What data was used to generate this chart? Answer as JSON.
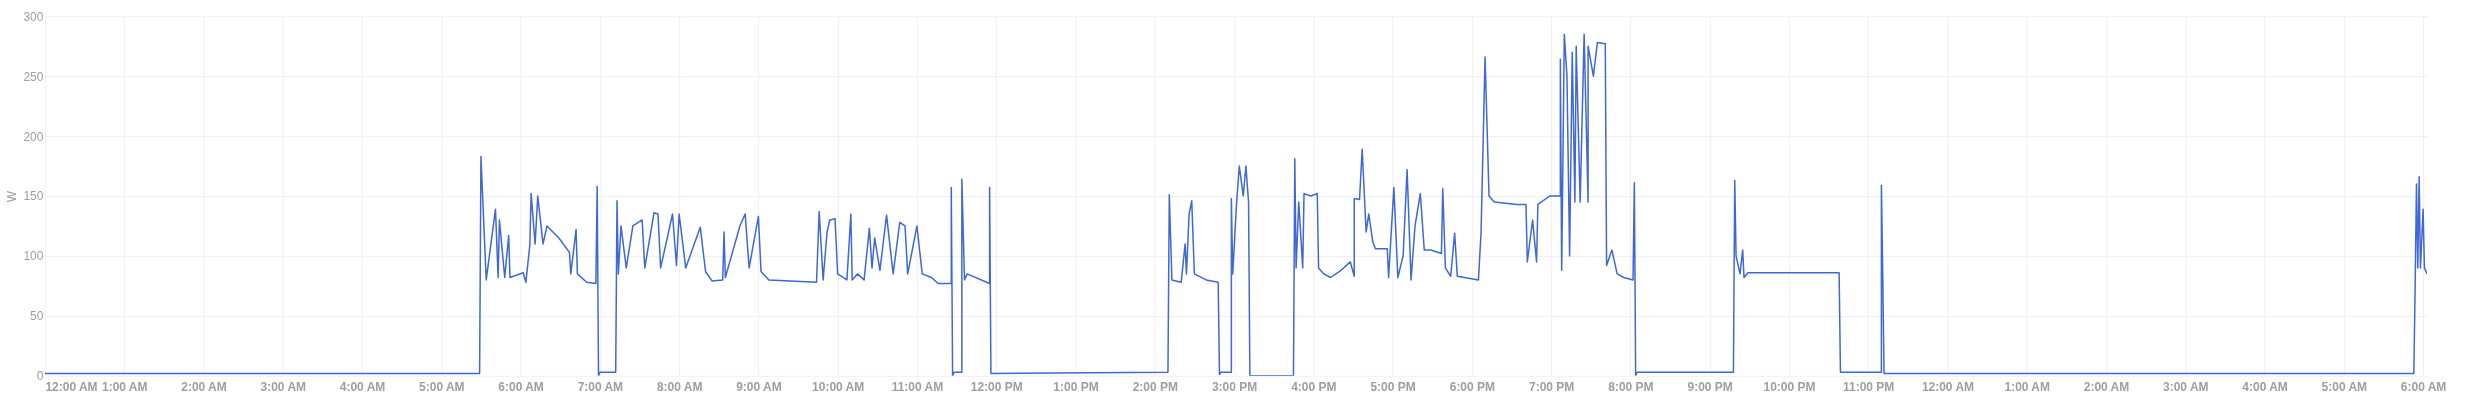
{
  "chart_data": {
    "type": "line",
    "ylabel": "W",
    "x": [
      "2000-01-01T00:00",
      "2000-01-01T05:29",
      "2000-01-01T05:30",
      "2000-01-01T05:32",
      "2000-01-01T05:34",
      "2000-01-01T05:41",
      "2000-01-01T05:43",
      "2000-01-01T05:44",
      "2000-01-01T05:48",
      "2000-01-01T05:51",
      "2000-01-01T05:52",
      "2000-01-01T06:02",
      "2000-01-01T06:04",
      "2000-01-01T06:07",
      "2000-01-01T06:08",
      "2000-01-01T06:11",
      "2000-01-01T06:13",
      "2000-01-01T06:17",
      "2000-01-01T06:20",
      "2000-01-01T06:29",
      "2000-01-01T06:37",
      "2000-01-01T06:38",
      "2000-01-01T06:42",
      "2000-01-01T06:43",
      "2000-01-01T06:50",
      "2000-01-01T06:57",
      "2000-01-01T06:58",
      "2000-01-01T06:59",
      "2000-01-01T07:00",
      "2000-01-01T07:12",
      "2000-01-01T07:13",
      "2000-01-01T07:14",
      "2000-01-01T07:16",
      "2000-01-01T07:20",
      "2000-01-01T07:25",
      "2000-01-01T07:32",
      "2000-01-01T07:34",
      "2000-01-01T07:41",
      "2000-01-01T07:44",
      "2000-01-01T07:46",
      "2000-01-01T07:55",
      "2000-01-01T07:58",
      "2000-01-01T08:00",
      "2000-01-01T08:05",
      "2000-01-01T08:16",
      "2000-01-01T08:20",
      "2000-01-01T08:25",
      "2000-01-01T08:33",
      "2000-01-01T08:34",
      "2000-01-01T08:35",
      "2000-01-01T08:46",
      "2000-01-01T08:50",
      "2000-01-01T08:53",
      "2000-01-01T09:00",
      "2000-01-01T09:02",
      "2000-01-01T09:08",
      "2000-01-01T09:44",
      "2000-01-01T09:46",
      "2000-01-01T09:49",
      "2000-01-01T09:52",
      "2000-01-01T09:54",
      "2000-01-01T09:58",
      "2000-01-01T10:00",
      "2000-01-01T10:07",
      "2000-01-01T10:10",
      "2000-01-01T10:11",
      "2000-01-01T10:15",
      "2000-01-01T10:20",
      "2000-01-01T10:24",
      "2000-01-01T10:26",
      "2000-01-01T10:28",
      "2000-01-01T10:32",
      "2000-01-01T10:37",
      "2000-01-01T10:42",
      "2000-01-01T10:47",
      "2000-01-01T10:51",
      "2000-01-01T10:53",
      "2000-01-01T11:00",
      "2000-01-01T11:04",
      "2000-01-01T11:11",
      "2000-01-01T11:16",
      "2000-01-01T11:26",
      "2000-01-01T11:26",
      "2000-01-01T11:27",
      "2000-01-01T11:28",
      "2000-01-01T11:34",
      "2000-01-01T11:34",
      "2000-01-01T11:36",
      "2000-01-01T11:38",
      "2000-01-01T11:55",
      "2000-01-01T11:55",
      "2000-01-01T11:56",
      "2000-01-01T14:10",
      "2000-01-01T14:11",
      "2000-01-01T14:13",
      "2000-01-01T14:20",
      "2000-01-01T14:23",
      "2000-01-01T14:24",
      "2000-01-01T14:26",
      "2000-01-01T14:28",
      "2000-01-01T14:30",
      "2000-01-01T14:39",
      "2000-01-01T14:48",
      "2000-01-01T14:49",
      "2000-01-01T14:50",
      "2000-01-01T14:58",
      "2000-01-01T14:58",
      "2000-01-01T14:59",
      "2000-01-01T15:02",
      "2000-01-01T15:04",
      "2000-01-01T15:07",
      "2000-01-01T15:09",
      "2000-01-01T15:11",
      "2000-01-01T15:12",
      "2000-01-01T15:45",
      "2000-01-01T15:46",
      "2000-01-01T15:47",
      "2000-01-01T15:49",
      "2000-01-01T15:52",
      "2000-01-01T15:53",
      "2000-01-01T15:58",
      "2000-01-01T16:03",
      "2000-01-01T16:04",
      "2000-01-01T16:08",
      "2000-01-01T16:13",
      "2000-01-01T16:21",
      "2000-01-01T16:28",
      "2000-01-01T16:31",
      "2000-01-01T16:31",
      "2000-01-01T16:35",
      "2000-01-01T16:37",
      "2000-01-01T16:40",
      "2000-01-01T16:42",
      "2000-01-01T16:45",
      "2000-01-01T16:47",
      "2000-01-01T16:56",
      "2000-01-01T16:57",
      "2000-01-01T17:01",
      "2000-01-01T17:04",
      "2000-01-01T17:08",
      "2000-01-01T17:11",
      "2000-01-01T17:14",
      "2000-01-01T17:17",
      "2000-01-01T17:21",
      "2000-01-01T17:24",
      "2000-01-01T17:29",
      "2000-01-01T17:37",
      "2000-01-01T17:38",
      "2000-01-01T17:40",
      "2000-01-01T17:44",
      "2000-01-01T17:47",
      "2000-01-01T17:49",
      "2000-01-01T18:05",
      "2000-01-01T18:07",
      "2000-01-01T18:10",
      "2000-01-01T18:11",
      "2000-01-01T18:13",
      "2000-01-01T18:17",
      "2000-01-01T18:34",
      "2000-01-01T18:41",
      "2000-01-01T18:42",
      "2000-01-01T18:46",
      "2000-01-01T18:49",
      "2000-01-01T18:50",
      "2000-01-01T18:59",
      "2000-01-01T19:07",
      "2000-01-01T19:07",
      "2000-01-01T19:08",
      "2000-01-01T19:10",
      "2000-01-01T19:12",
      "2000-01-01T19:14",
      "2000-01-01T19:16",
      "2000-01-01T19:18",
      "2000-01-01T19:19",
      "2000-01-01T19:22",
      "2000-01-01T19:25",
      "2000-01-01T19:28",
      "2000-01-01T19:28",
      "2000-01-01T19:32",
      "2000-01-01T19:35",
      "2000-01-01T19:41",
      "2000-01-01T19:42",
      "2000-01-01T19:46",
      "2000-01-01T19:50",
      "2000-01-01T19:55",
      "2000-01-01T20:02",
      "2000-01-01T20:03",
      "2000-01-01T20:04",
      "2000-01-01T20:05",
      "2000-01-01T21:18",
      "2000-01-01T21:19",
      "2000-01-01T21:20",
      "2000-01-01T21:23",
      "2000-01-01T21:25",
      "2000-01-01T21:26",
      "2000-01-01T21:29",
      "2000-01-01T22:38",
      "2000-01-01T22:39",
      "2000-01-01T23:10",
      "2000-01-01T23:10",
      "2000-01-01T23:11",
      "2000-01-01T23:12",
      "2000-01-02T00:41",
      "2000-01-02T05:53",
      "2000-01-02T05:54",
      "2000-01-02T05:55",
      "2000-01-02T05:56",
      "2000-01-02T05:57",
      "2000-01-02T05:58",
      "2000-01-02T06:00",
      "2000-01-02T06:01",
      "2000-01-02T06:03"
    ],
    "values": [
      2,
      2,
      183,
      131,
      80,
      139,
      82,
      130,
      82,
      117,
      82,
      86,
      78,
      109,
      152,
      110,
      150,
      110,
      125,
      115,
      103,
      85,
      122,
      85,
      78,
      77,
      158,
      0,
      3,
      3,
      146,
      85,
      125,
      90,
      125,
      130,
      90,
      136,
      135,
      90,
      135,
      92,
      135,
      90,
      124,
      87,
      79,
      80,
      120,
      82,
      125,
      135,
      90,
      133,
      87,
      80,
      78,
      137,
      80,
      120,
      130,
      131,
      85,
      80,
      135,
      80,
      85,
      80,
      123,
      90,
      115,
      88,
      134,
      85,
      128,
      125,
      85,
      125,
      85,
      82,
      77,
      77,
      157,
      0,
      3,
      3,
      164,
      80,
      85,
      77,
      157,
      2,
      3,
      151,
      80,
      78,
      110,
      85,
      135,
      146,
      85,
      80,
      78,
      1,
      3,
      3,
      148,
      85,
      145,
      175,
      150,
      175,
      145,
      0,
      0,
      181,
      90,
      145,
      90,
      152,
      150,
      152,
      90,
      85,
      82,
      88,
      95,
      83,
      148,
      147,
      189,
      120,
      135,
      112,
      106,
      106,
      82,
      157,
      82,
      100,
      172,
      80,
      125,
      152,
      105,
      105,
      102,
      156,
      90,
      83,
      119,
      83,
      80,
      120,
      266,
      228,
      150,
      145,
      143,
      143,
      95,
      130,
      95,
      143,
      150,
      150,
      264,
      88,
      285,
      250,
      100,
      270,
      145,
      275,
      145,
      285,
      145,
      275,
      250,
      278,
      277,
      92,
      105,
      85,
      82,
      80,
      161,
      0,
      3,
      3,
      163,
      100,
      85,
      105,
      82,
      86,
      86,
      3,
      3,
      159,
      85,
      2,
      2,
      2,
      76,
      160,
      90,
      166,
      90,
      139,
      90,
      85
    ],
    "color": "#3f67d6",
    "xlim": [
      "2000-01-01T00:00",
      "2000-01-02T06:03"
    ],
    "xticks": [
      {
        "value": "2000-01-01T00:00",
        "label": "12:00 AM"
      },
      {
        "value": "2000-01-01T01:00",
        "label": "1:00 AM"
      },
      {
        "value": "2000-01-01T02:00",
        "label": "2:00 AM"
      },
      {
        "value": "2000-01-01T03:00",
        "label": "3:00 AM"
      },
      {
        "value": "2000-01-01T04:00",
        "label": "4:00 AM"
      },
      {
        "value": "2000-01-01T05:00",
        "label": "5:00 AM"
      },
      {
        "value": "2000-01-01T06:00",
        "label": "6:00 AM"
      },
      {
        "value": "2000-01-01T07:00",
        "label": "7:00 AM"
      },
      {
        "value": "2000-01-01T08:00",
        "label": "8:00 AM"
      },
      {
        "value": "2000-01-01T09:00",
        "label": "9:00 AM"
      },
      {
        "value": "2000-01-01T10:00",
        "label": "10:00 AM"
      },
      {
        "value": "2000-01-01T11:00",
        "label": "11:00 AM"
      },
      {
        "value": "2000-01-01T12:00",
        "label": "12:00 PM"
      },
      {
        "value": "2000-01-01T13:00",
        "label": "1:00 PM"
      },
      {
        "value": "2000-01-01T14:00",
        "label": "2:00 PM"
      },
      {
        "value": "2000-01-01T15:00",
        "label": "3:00 PM"
      },
      {
        "value": "2000-01-01T16:00",
        "label": "4:00 PM"
      },
      {
        "value": "2000-01-01T17:00",
        "label": "5:00 PM"
      },
      {
        "value": "2000-01-01T18:00",
        "label": "6:00 PM"
      },
      {
        "value": "2000-01-01T19:00",
        "label": "7:00 PM"
      },
      {
        "value": "2000-01-01T20:00",
        "label": "8:00 PM"
      },
      {
        "value": "2000-01-01T21:00",
        "label": "9:00 PM"
      },
      {
        "value": "2000-01-01T22:00",
        "label": "10:00 PM"
      },
      {
        "value": "2000-01-01T23:00",
        "label": "11:00 PM"
      },
      {
        "value": "2000-01-02T00:00",
        "label": "12:00 AM"
      },
      {
        "value": "2000-01-02T01:00",
        "label": "1:00 AM"
      },
      {
        "value": "2000-01-02T02:00",
        "label": "2:00 AM"
      },
      {
        "value": "2000-01-02T03:00",
        "label": "3:00 AM"
      },
      {
        "value": "2000-01-02T04:00",
        "label": "4:00 AM"
      },
      {
        "value": "2000-01-02T05:00",
        "label": "5:00 AM"
      },
      {
        "value": "2000-01-02T06:00",
        "label": "6:00 AM"
      }
    ],
    "ylim": [
      0,
      300
    ],
    "yticks": [
      0,
      50,
      100,
      150,
      200,
      250,
      300
    ],
    "grid": true,
    "marker": "none",
    "line_style": "solid"
  }
}
